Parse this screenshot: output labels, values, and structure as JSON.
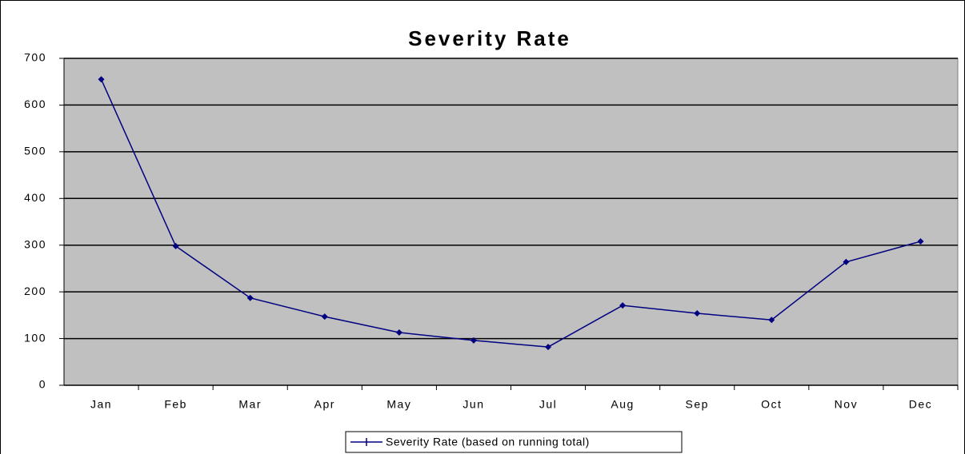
{
  "chart_data": {
    "type": "line",
    "title": "Severity Rate",
    "categories": [
      "Jan",
      "Feb",
      "Mar",
      "Apr",
      "May",
      "Jun",
      "Jul",
      "Aug",
      "Sep",
      "Oct",
      "Nov",
      "Dec"
    ],
    "series": [
      {
        "name": "Severity Rate (based on running total)",
        "color": "#000080",
        "values": [
          655,
          298,
          187,
          147,
          113,
          96,
          82,
          171,
          154,
          140,
          264,
          308
        ]
      }
    ],
    "ylim": [
      0,
      700
    ],
    "yticks": [
      0,
      100,
      200,
      300,
      400,
      500,
      600,
      700
    ],
    "grid": true,
    "legend": "bottom"
  }
}
